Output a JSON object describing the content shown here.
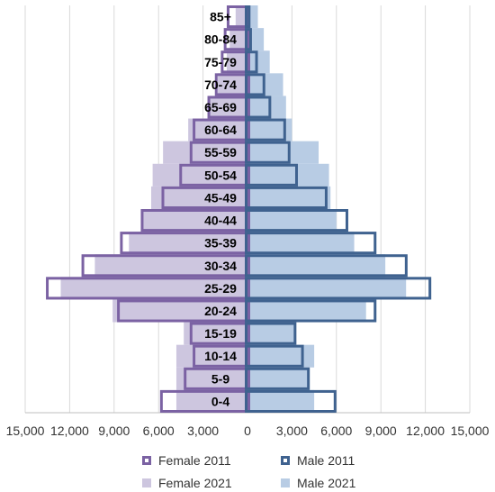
{
  "chart_data": {
    "type": "bar",
    "orientation": "horizontal",
    "subtype": "population-pyramid",
    "categories": [
      "85+",
      "80-84",
      "75-79",
      "70-74",
      "65-69",
      "60-64",
      "55-59",
      "50-54",
      "45-49",
      "40-44",
      "35-39",
      "30-34",
      "25-29",
      "20-24",
      "15-19",
      "10-14",
      "5-9",
      "0-4"
    ],
    "series": [
      {
        "name": "Female 2011",
        "side": "left",
        "style": "outline",
        "color": "#7B62A3",
        "values": [
          1400,
          1600,
          1800,
          2200,
          2700,
          3700,
          3900,
          4600,
          5800,
          7200,
          8600,
          11200,
          13600,
          8800,
          3900,
          3700,
          4300,
          5900
        ]
      },
      {
        "name": "Male 2011",
        "side": "right",
        "style": "outline",
        "color": "#3F628F",
        "values": [
          200,
          300,
          700,
          1200,
          1600,
          2600,
          2900,
          3400,
          5400,
          6800,
          8700,
          10800,
          12400,
          8700,
          3300,
          3800,
          4200,
          6000
        ]
      },
      {
        "name": "Female 2021",
        "side": "left",
        "style": "fill",
        "color": "#CDC6DF",
        "values": [
          800,
          1200,
          1400,
          2000,
          2600,
          4000,
          5700,
          6400,
          6500,
          7100,
          8000,
          10300,
          12600,
          9100,
          4300,
          4800,
          4800,
          4800
        ]
      },
      {
        "name": "Male 2021",
        "side": "right",
        "style": "fill",
        "color": "#B8CCE4",
        "values": [
          700,
          1100,
          1500,
          2400,
          2600,
          3000,
          4800,
          5500,
          5600,
          6000,
          7200,
          9300,
          10700,
          8000,
          3200,
          4500,
          4200,
          4500
        ]
      }
    ],
    "xlim": [
      -15000,
      15000
    ],
    "x_ticks": [
      "15,000",
      "12,000",
      "9,000",
      "6,000",
      "3,000",
      "0",
      "3,000",
      "6,000",
      "9,000",
      "12,000",
      "15,000"
    ],
    "x_tick_values": [
      -15000,
      -12000,
      -9000,
      -6000,
      -3000,
      0,
      3000,
      6000,
      9000,
      12000,
      15000
    ],
    "grid": true,
    "legend_position": "bottom"
  },
  "legend": {
    "female_2011": "Female 2011",
    "male_2011": "Male 2011",
    "female_2021": "Female 2021",
    "male_2021": "Male 2021"
  }
}
